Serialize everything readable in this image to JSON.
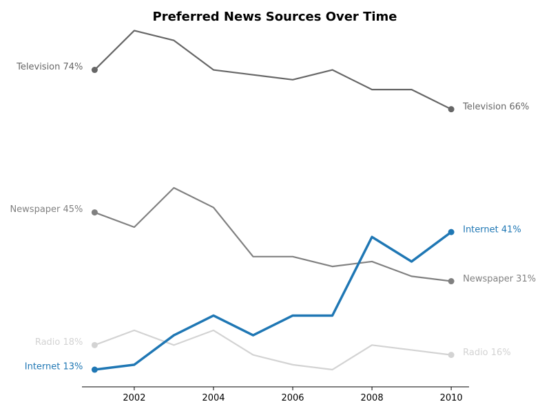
{
  "chart_data": {
    "type": "line",
    "title": "Preferred News Sources Over Time",
    "xlabel": "",
    "ylabel": "",
    "x": [
      2001,
      2002,
      2003,
      2004,
      2005,
      2006,
      2007,
      2008,
      2009,
      2010
    ],
    "x_ticks": [
      "2002",
      "2004",
      "2006",
      "2008",
      "2010"
    ],
    "xlim": [
      2000.68,
      2010.45
    ],
    "ylim": [
      9.5,
      81.5
    ],
    "grid": false,
    "legend": "none",
    "series": [
      {
        "name": "Television",
        "color": "#666666",
        "values": [
          74,
          82,
          80,
          74,
          73,
          72,
          74,
          70,
          70,
          66
        ],
        "start_label": "Television 74%",
        "end_label": "Television 66%"
      },
      {
        "name": "Newspaper",
        "color": "#808080",
        "values": [
          45,
          42,
          50,
          46,
          36,
          36,
          34,
          35,
          32,
          31
        ],
        "start_label": "Newspaper 45%",
        "end_label": "Newspaper 31%"
      },
      {
        "name": "Radio",
        "color": "#d3d3d3",
        "values": [
          18,
          21,
          18,
          21,
          16,
          14,
          13,
          18,
          17,
          16
        ],
        "start_label": "Radio 18%",
        "end_label": "Radio 16%"
      },
      {
        "name": "Internet",
        "color": "#1f77b4",
        "highlight": true,
        "values": [
          13,
          14,
          20,
          24,
          20,
          24,
          24,
          40,
          35,
          41
        ],
        "start_label": "Internet 13%",
        "end_label": "Internet 41%"
      }
    ]
  }
}
